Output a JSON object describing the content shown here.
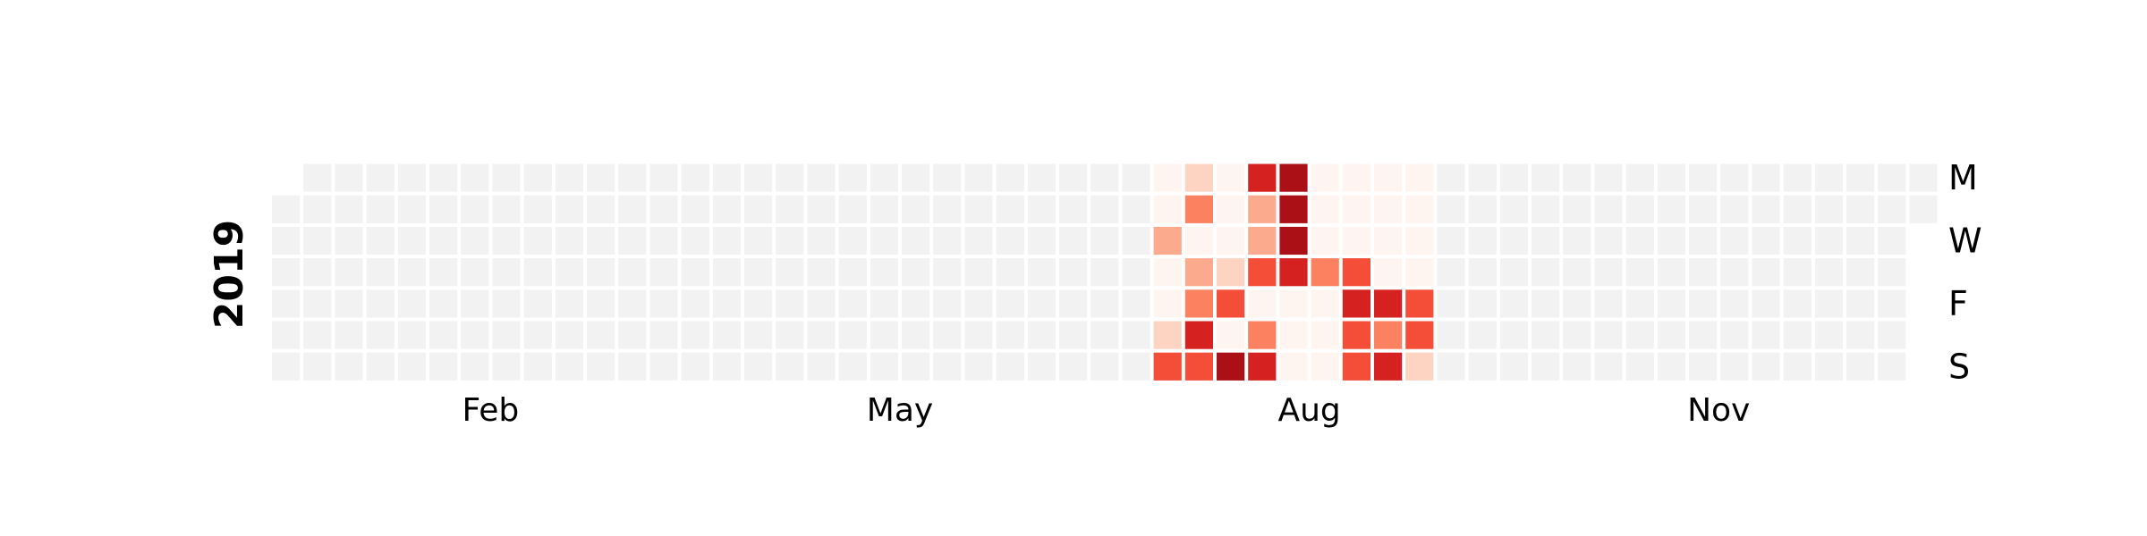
{
  "chart_data": {
    "type": "heatmap",
    "year_label": "2019",
    "row_labels": [
      "M",
      "",
      "W",
      "",
      "F",
      "",
      "S"
    ],
    "month_labels": [
      "Feb",
      "May",
      "Aug",
      "Nov"
    ],
    "color_scale": {
      "empty": "#f2f2f2",
      "levels": [
        "#fff5f0",
        "#fdd4c2",
        "#fcaa8e",
        "#fc8161",
        "#f44d38",
        "#d52221",
        "#aa1016",
        "#67000d"
      ]
    },
    "active_weeks": {
      "start_week": 28,
      "intensity_by_week": [
        [
          0,
          0,
          2,
          0,
          0,
          1,
          4
        ],
        [
          1,
          3,
          0,
          2,
          3,
          5,
          4
        ],
        [
          0,
          0,
          0,
          1,
          4,
          0,
          6
        ],
        [
          5,
          2,
          2,
          4,
          0,
          3,
          5
        ],
        [
          6,
          6,
          6,
          5,
          0,
          0,
          0
        ],
        [
          0,
          0,
          0,
          3,
          0,
          0,
          0
        ],
        [
          0,
          0,
          0,
          4,
          5,
          4,
          4
        ],
        [
          0,
          0,
          0,
          0,
          5,
          3,
          5
        ],
        [
          0,
          0,
          0,
          0,
          4,
          4,
          1
        ]
      ]
    }
  }
}
